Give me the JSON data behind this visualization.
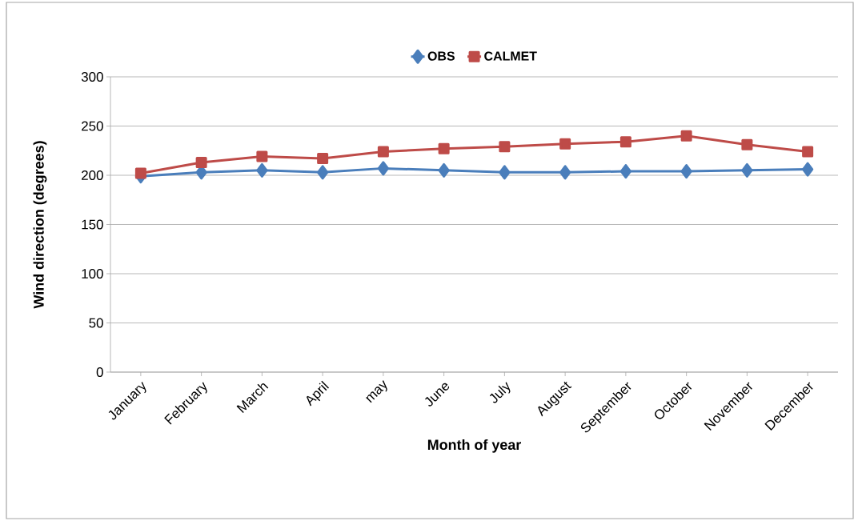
{
  "chart_data": {
    "type": "line",
    "xlabel": "Month of year",
    "ylabel": "Wind direction (degrees)",
    "categories": [
      "January",
      "February",
      "March",
      "April",
      "may",
      "June",
      "July",
      "August",
      "September",
      "October",
      "November",
      "December"
    ],
    "series": [
      {
        "name": "OBS",
        "color": "#4a7ebb",
        "marker": "diamond",
        "values": [
          199,
          203,
          205,
          203,
          207,
          205,
          203,
          203,
          204,
          204,
          205,
          206
        ]
      },
      {
        "name": "CALMET",
        "color": "#be4b48",
        "marker": "square",
        "values": [
          202,
          213,
          219,
          217,
          224,
          227,
          229,
          232,
          234,
          240,
          231,
          224
        ]
      }
    ],
    "ylim": [
      0,
      300
    ],
    "yticks": [
      0,
      50,
      100,
      150,
      200,
      250,
      300
    ],
    "grid": "y",
    "legend": "top",
    "line_style": "solid"
  }
}
